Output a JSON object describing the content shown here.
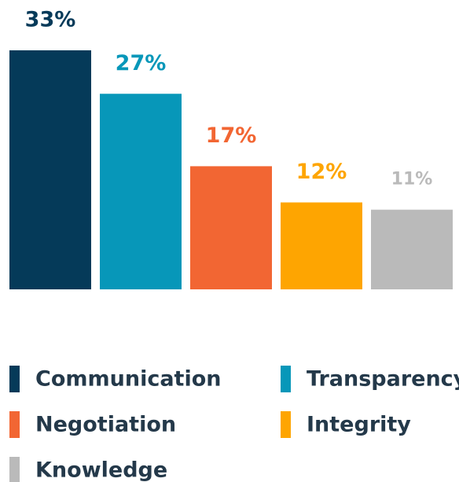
{
  "chart_data": {
    "type": "bar",
    "categories": [
      "Communication",
      "Transparency",
      "Negotiation",
      "Integrity",
      "Knowledge"
    ],
    "values": [
      33,
      27,
      17,
      12,
      11
    ],
    "value_labels": [
      "33%",
      "27%",
      "17%",
      "12%",
      "11%"
    ],
    "colors": [
      "#053a59",
      "#0797b9",
      "#f26633",
      "#fea501",
      "#bababa"
    ]
  }
}
